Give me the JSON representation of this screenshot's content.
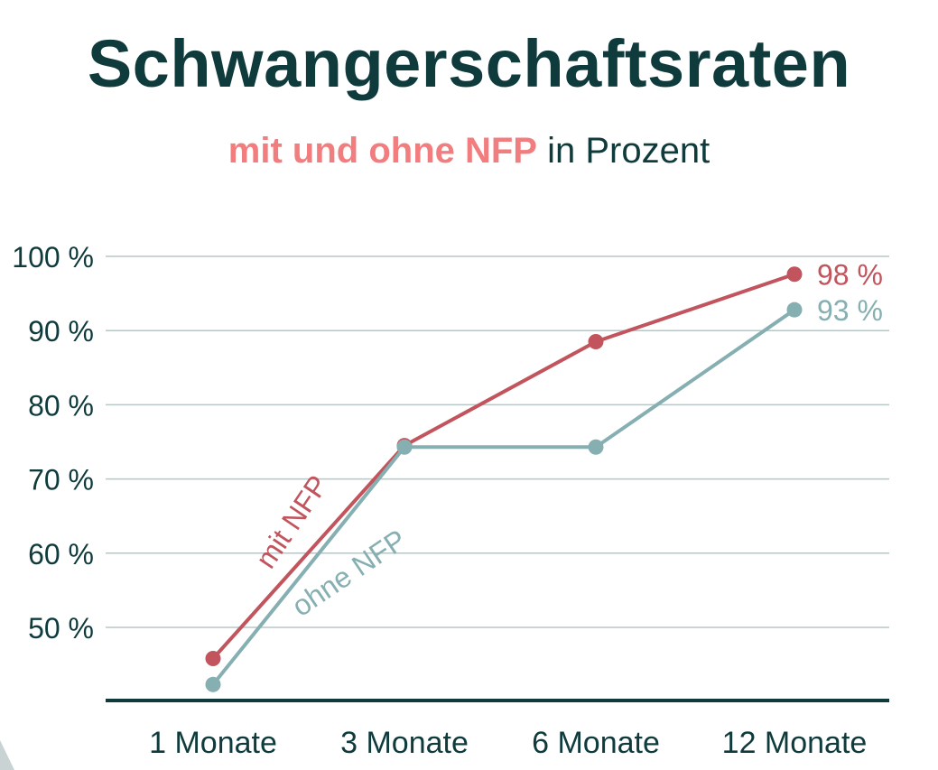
{
  "header": {
    "title": "Schwangerschaftsraten",
    "subtitle_highlight": "mit und ohne NFP",
    "subtitle_rest": " in Prozent"
  },
  "colors": {
    "title": "#0f3b3c",
    "highlight": "#f27d7f",
    "series_mit": "#c1545c",
    "series_ohne": "#86afb2",
    "grid": "#b9c6c6",
    "axis": "#0f3b3c"
  },
  "chart_data": {
    "type": "line",
    "categories": [
      "1 Monate",
      "3 Monate",
      "6 Monate",
      "12 Monate"
    ],
    "ylim": [
      40,
      100
    ],
    "yticks": [
      {
        "value": 100,
        "label": "100 %"
      },
      {
        "value": 90,
        "label": "90 %"
      },
      {
        "value": 80,
        "label": "80 %"
      },
      {
        "value": 70,
        "label": "70 %"
      },
      {
        "value": 60,
        "label": "60 %"
      },
      {
        "value": 50,
        "label": "50 %"
      }
    ],
    "grid": true,
    "series": [
      {
        "name": "mit NFP",
        "color": "#c1545c",
        "values": [
          45.8,
          74.5,
          88.5,
          97.6
        ],
        "end_label": "98 %"
      },
      {
        "name": "ohne NFP",
        "color": "#86afb2",
        "values": [
          42.3,
          74.3,
          74.3,
          92.8
        ],
        "end_label": "93 %"
      }
    ]
  }
}
